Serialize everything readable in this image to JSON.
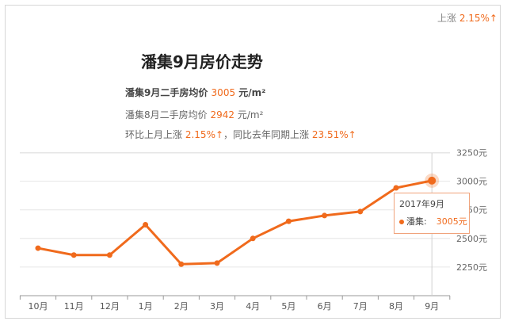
{
  "header": {
    "change_label": "上涨",
    "change_value": "2.15%↑",
    "title": "潘集9月房价走势"
  },
  "info": {
    "line1_label": "潘集9月二手房均价",
    "line1_value": "3005",
    "line1_unit": "元/m²",
    "line2_label": "潘集8月二手房均价",
    "line2_value": "2942",
    "line2_unit": "元/m²",
    "line3_a": "环比上月上涨",
    "line3_b": "2.15%↑",
    "line3_c": "，同比去年同期上涨",
    "line3_d": "23.51%↑"
  },
  "tooltip": {
    "date": "2017年9月",
    "series": "潘集:",
    "value": "3005元"
  },
  "colors": {
    "line": "#f06a1c",
    "grid": "#e6e6e6",
    "axis": "#999999"
  },
  "chart_data": {
    "type": "line",
    "title": "潘集9月房价走势",
    "categories": [
      "10月",
      "11月",
      "12月",
      "1月",
      "2月",
      "3月",
      "4月",
      "5月",
      "6月",
      "7月",
      "8月",
      "9月"
    ],
    "series": [
      {
        "name": "潘集",
        "values": [
          2415,
          2355,
          2355,
          2620,
          2275,
          2285,
          2500,
          2650,
          2700,
          2735,
          2942,
          3005
        ]
      }
    ],
    "y_ticks": [
      2250,
      2500,
      2750,
      3000,
      3250
    ],
    "y_tick_labels": [
      "2250元",
      "2500元",
      "2750元",
      "3000元",
      "3250元"
    ],
    "ylim": [
      2000,
      3250
    ],
    "grid": true,
    "highlight_index": 11
  }
}
